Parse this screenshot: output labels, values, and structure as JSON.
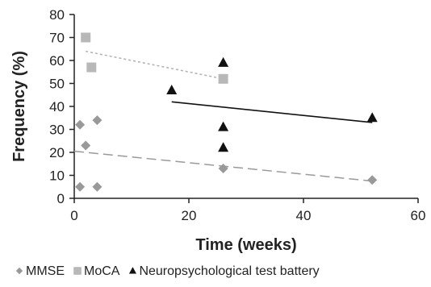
{
  "chart_data": {
    "type": "scatter",
    "title": "",
    "xlabel": "Time  (weeks)",
    "ylabel": "Frequency (%)",
    "xlim": [
      0,
      60
    ],
    "ylim": [
      0,
      80
    ],
    "xticks": [
      0,
      20,
      40,
      60
    ],
    "yticks": [
      0,
      10,
      20,
      30,
      40,
      50,
      60,
      70,
      80
    ],
    "grid": false,
    "legend_position": "bottom",
    "series": [
      {
        "name": "MMSE",
        "marker": "diamond",
        "color": "#999999",
        "points": [
          {
            "x": 1,
            "y": 5
          },
          {
            "x": 1,
            "y": 32
          },
          {
            "x": 2,
            "y": 23
          },
          {
            "x": 4,
            "y": 5
          },
          {
            "x": 4,
            "y": 34
          },
          {
            "x": 26,
            "y": 13
          },
          {
            "x": 52,
            "y": 8
          }
        ],
        "trend": {
          "x": [
            0,
            52
          ],
          "y": [
            20.5,
            7.5
          ],
          "style": "dashed",
          "color": "#9a9a9a"
        }
      },
      {
        "name": "MoCA",
        "marker": "square",
        "color": "#b8b8b8",
        "points": [
          {
            "x": 2,
            "y": 70
          },
          {
            "x": 3,
            "y": 57
          },
          {
            "x": 26,
            "y": 52
          }
        ],
        "trend": {
          "x": [
            2,
            26
          ],
          "y": [
            64,
            52
          ],
          "style": "dotted",
          "color": "#b0b0b0"
        }
      },
      {
        "name": "Neuropsychological test battery",
        "marker": "triangle",
        "color": "#111111",
        "points": [
          {
            "x": 17,
            "y": 47
          },
          {
            "x": 26,
            "y": 59
          },
          {
            "x": 26,
            "y": 31
          },
          {
            "x": 26,
            "y": 22
          },
          {
            "x": 52,
            "y": 35
          }
        ],
        "trend": {
          "x": [
            17,
            52
          ],
          "y": [
            42,
            33
          ],
          "style": "solid",
          "color": "#111111"
        }
      }
    ]
  }
}
